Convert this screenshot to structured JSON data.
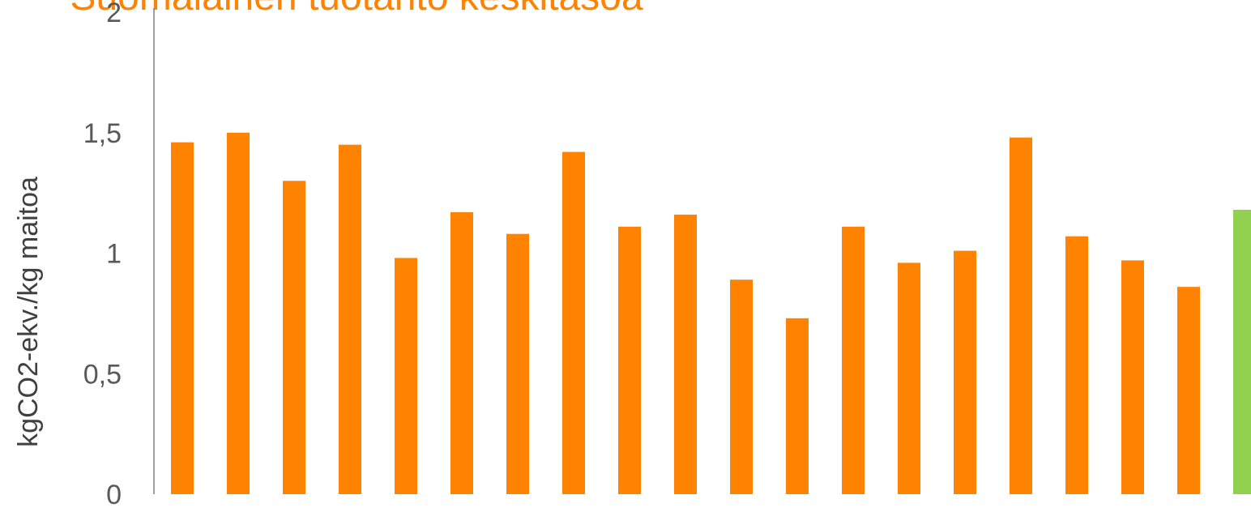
{
  "chart_data": {
    "type": "bar",
    "title": "Suomalainen tuotanto keskitasoa",
    "ylabel": "kgCO2-ekv./kg maitoa",
    "xlabel": "",
    "ylim": [
      0,
      2
    ],
    "yticks": [
      "0",
      "0,5",
      "1",
      "1,5",
      "2"
    ],
    "ytick_values": [
      0,
      0.5,
      1,
      1.5,
      2
    ],
    "grid": false,
    "values": [
      1.46,
      1.5,
      1.3,
      1.45,
      0.98,
      1.17,
      1.08,
      1.42,
      1.11,
      1.16,
      0.89,
      0.73,
      1.11,
      0.96,
      1.01,
      1.48,
      1.07,
      0.97,
      0.86,
      1.18
    ],
    "colors": {
      "bar": "#FF8200",
      "highlight_bar": "#92D050",
      "title": "#FF8200",
      "axis": "#808080"
    },
    "highlight_index": 19
  }
}
